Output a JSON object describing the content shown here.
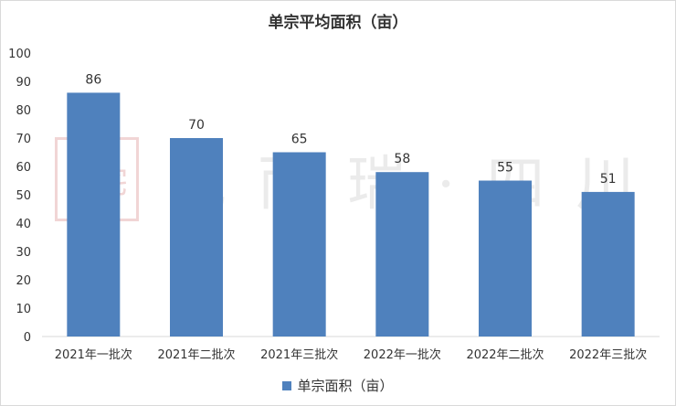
{
  "chart_data": {
    "type": "bar",
    "title": "单宗平均面积（亩）",
    "categories": [
      "2021年一批次",
      "2021年二批次",
      "2021年三批次",
      "2022年一批次",
      "2022年二批次",
      "2022年三批次"
    ],
    "series": [
      {
        "name": "单宗面积（亩）",
        "values": [
          86,
          70,
          65,
          58,
          55,
          51
        ]
      }
    ],
    "ylim": [
      0,
      100
    ],
    "yticks": [
      0,
      10,
      20,
      30,
      40,
      50,
      60,
      70,
      80,
      90,
      100
    ],
    "grid": false,
    "data_labels": true,
    "legend_position": "bottom",
    "bar_color": "#4f81bd"
  },
  "watermark": {
    "seal": "豪宅",
    "text": "克而瑞·四川"
  }
}
